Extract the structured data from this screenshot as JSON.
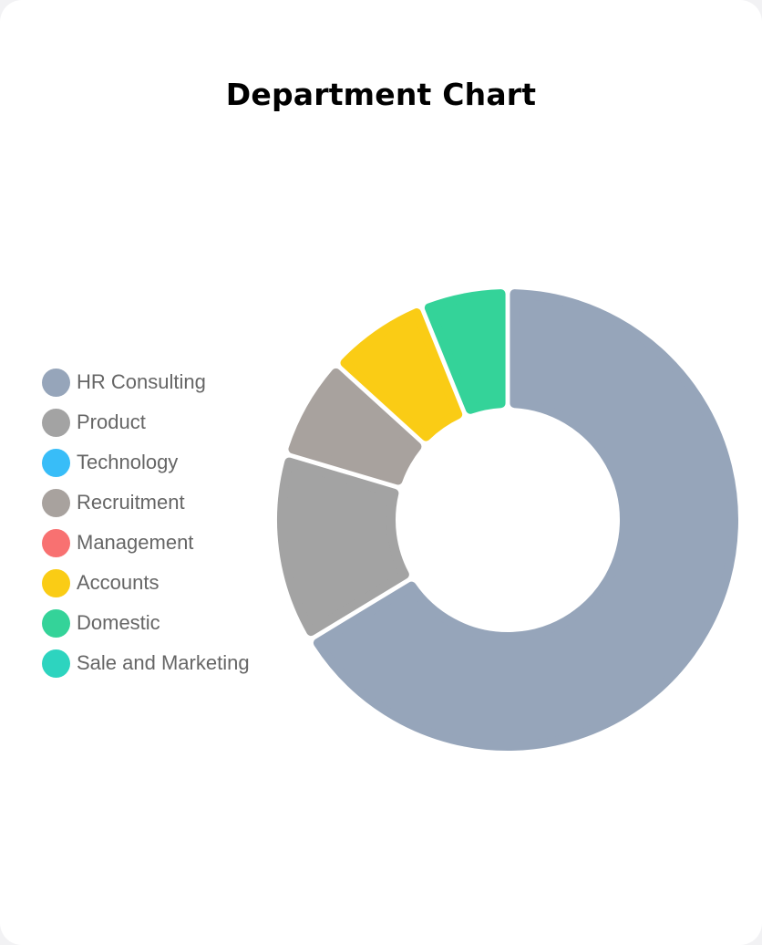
{
  "chart_data": {
    "type": "pie",
    "title": "Department Chart",
    "legend_position": "left",
    "categories": [
      "HR Consulting",
      "Product",
      "Technology",
      "Recruitment",
      "Management",
      "Accounts",
      "Domestic",
      "Sale and Marketing"
    ],
    "values": [
      65,
      13,
      0,
      7,
      0,
      7,
      6,
      0
    ],
    "colors": [
      "#96a5ba",
      "#a3a3a3",
      "#38bdf8",
      "#a8a29e",
      "#f87171",
      "#facc15",
      "#34d399",
      "#2dd4bf"
    ]
  }
}
